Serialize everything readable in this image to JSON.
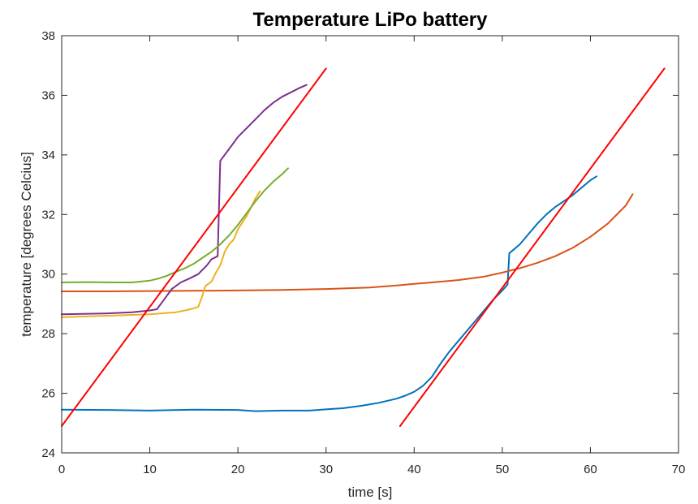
{
  "chart_data": {
    "type": "line",
    "title": "Temperature LiPo battery",
    "xlabel": "time [s]",
    "ylabel": "temperature [degrees Celcius]",
    "xlim": [
      0,
      70
    ],
    "ylim": [
      24,
      38
    ],
    "xticks": [
      0,
      10,
      20,
      30,
      40,
      50,
      60,
      70
    ],
    "yticks": [
      24,
      26,
      28,
      30,
      32,
      34,
      36,
      38
    ],
    "grid": false,
    "legend": null,
    "series": [
      {
        "color": "#0072BD",
        "points": [
          [
            0,
            25.45
          ],
          [
            5,
            25.44
          ],
          [
            10,
            25.42
          ],
          [
            15,
            25.45
          ],
          [
            20,
            25.44
          ],
          [
            22,
            25.4
          ],
          [
            25,
            25.42
          ],
          [
            28,
            25.42
          ],
          [
            30,
            25.46
          ],
          [
            32,
            25.5
          ],
          [
            34,
            25.58
          ],
          [
            36,
            25.68
          ],
          [
            38,
            25.82
          ],
          [
            39,
            25.92
          ],
          [
            40,
            26.05
          ],
          [
            41,
            26.25
          ],
          [
            42,
            26.55
          ],
          [
            43,
            27.0
          ],
          [
            44,
            27.4
          ],
          [
            45,
            27.75
          ],
          [
            46,
            28.1
          ],
          [
            47,
            28.45
          ],
          [
            48,
            28.8
          ],
          [
            49,
            29.15
          ],
          [
            50,
            29.45
          ],
          [
            50.6,
            29.65
          ],
          [
            50.8,
            30.7
          ],
          [
            51,
            30.75
          ],
          [
            52,
            31.0
          ],
          [
            53,
            31.35
          ],
          [
            54,
            31.7
          ],
          [
            55,
            32.0
          ],
          [
            56,
            32.25
          ],
          [
            57,
            32.45
          ],
          [
            58,
            32.65
          ],
          [
            59,
            32.9
          ],
          [
            60,
            33.15
          ],
          [
            60.7,
            33.28
          ]
        ]
      },
      {
        "color": "#D95319",
        "points": [
          [
            0,
            29.42
          ],
          [
            5,
            29.42
          ],
          [
            10,
            29.43
          ],
          [
            15,
            29.44
          ],
          [
            20,
            29.45
          ],
          [
            25,
            29.47
          ],
          [
            30,
            29.5
          ],
          [
            35,
            29.55
          ],
          [
            38,
            29.62
          ],
          [
            40,
            29.67
          ],
          [
            42,
            29.72
          ],
          [
            45,
            29.8
          ],
          [
            48,
            29.92
          ],
          [
            50,
            30.05
          ],
          [
            52,
            30.2
          ],
          [
            54,
            30.38
          ],
          [
            56,
            30.6
          ],
          [
            58,
            30.88
          ],
          [
            60,
            31.25
          ],
          [
            62,
            31.7
          ],
          [
            64,
            32.3
          ],
          [
            64.8,
            32.68
          ]
        ]
      },
      {
        "color": "#EDB120",
        "points": [
          [
            0,
            28.55
          ],
          [
            5,
            28.6
          ],
          [
            10,
            28.65
          ],
          [
            13,
            28.72
          ],
          [
            14,
            28.78
          ],
          [
            15,
            28.85
          ],
          [
            15.5,
            28.9
          ],
          [
            16,
            29.3
          ],
          [
            16.3,
            29.6
          ],
          [
            17,
            29.75
          ],
          [
            17.5,
            30.05
          ],
          [
            18,
            30.3
          ],
          [
            18.5,
            30.75
          ],
          [
            19,
            31.0
          ],
          [
            19.5,
            31.15
          ],
          [
            20,
            31.5
          ],
          [
            21,
            31.95
          ],
          [
            22,
            32.55
          ],
          [
            22.5,
            32.78
          ]
        ]
      },
      {
        "color": "#7E2F8E",
        "points": [
          [
            0,
            28.65
          ],
          [
            5,
            28.68
          ],
          [
            8,
            28.72
          ],
          [
            10,
            28.78
          ],
          [
            10.8,
            28.82
          ],
          [
            11.5,
            29.1
          ],
          [
            12.5,
            29.5
          ],
          [
            13.5,
            29.72
          ],
          [
            14.5,
            29.85
          ],
          [
            15.5,
            30.0
          ],
          [
            16.5,
            30.3
          ],
          [
            17,
            30.5
          ],
          [
            17.7,
            30.6
          ],
          [
            18,
            33.8
          ],
          [
            19,
            34.2
          ],
          [
            20,
            34.6
          ],
          [
            21,
            34.9
          ],
          [
            22,
            35.2
          ],
          [
            23,
            35.5
          ],
          [
            24,
            35.75
          ],
          [
            25,
            35.95
          ],
          [
            26,
            36.1
          ],
          [
            27,
            36.25
          ],
          [
            27.8,
            36.35
          ]
        ]
      },
      {
        "color": "#77AC30",
        "points": [
          [
            0,
            29.72
          ],
          [
            3,
            29.73
          ],
          [
            6,
            29.72
          ],
          [
            8,
            29.72
          ],
          [
            10,
            29.78
          ],
          [
            11,
            29.85
          ],
          [
            12,
            29.95
          ],
          [
            13,
            30.08
          ],
          [
            14,
            30.2
          ],
          [
            15,
            30.35
          ],
          [
            16,
            30.55
          ],
          [
            17,
            30.75
          ],
          [
            18,
            31.0
          ],
          [
            19,
            31.3
          ],
          [
            20,
            31.65
          ],
          [
            21,
            32.05
          ],
          [
            22,
            32.45
          ],
          [
            23,
            32.8
          ],
          [
            24,
            33.1
          ],
          [
            25,
            33.35
          ],
          [
            25.7,
            33.55
          ]
        ]
      },
      {
        "color": "#FF0000",
        "points": [
          [
            0,
            24.9
          ],
          [
            30,
            36.9
          ]
        ]
      },
      {
        "color": "#FF0000",
        "points": [
          [
            38.4,
            24.9
          ],
          [
            68.4,
            36.9
          ]
        ]
      }
    ]
  }
}
